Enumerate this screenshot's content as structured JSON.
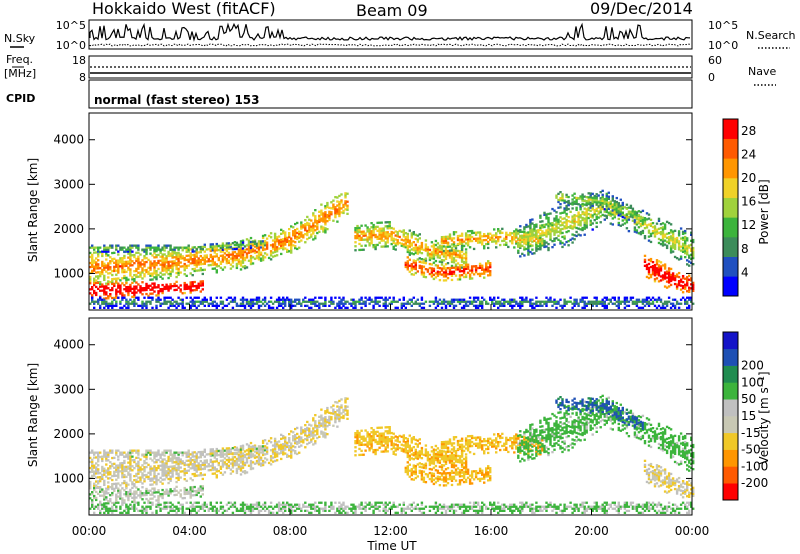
{
  "header": {
    "station": "Hokkaido West (fitACF)",
    "beam": "Beam 09",
    "date": "09/Dec/2014"
  },
  "summary": {
    "nsky_label": "N.Sky",
    "nsearch_label": "N.Search",
    "noise_ticks": [
      "10^5",
      "10^0"
    ],
    "freq_label_1": "Freq.",
    "freq_label_2": "[MHz]",
    "freq_ticks": [
      "18",
      "8"
    ],
    "nave_label": "Nave",
    "nave_ticks": [
      "60",
      "0"
    ],
    "cpid_label": "CPID",
    "cpid_text": "normal (fast stereo) 153"
  },
  "colors": {
    "power": [
      "#0000ff",
      "#2050c0",
      "#3c8c5a",
      "#3cb43c",
      "#a0d23c",
      "#f0d228",
      "#ff9600",
      "#ff5a00",
      "#ff0000"
    ],
    "velocity": [
      "#ff0000",
      "#ff5a00",
      "#ff9600",
      "#f0c828",
      "#c8c8b4",
      "#c0c0c0",
      "#3cb43c",
      "#208c50",
      "#1e50b4",
      "#1414c8"
    ]
  },
  "chart_data": [
    {
      "type": "heatmap",
      "name": "power",
      "xlabel": "",
      "ylabel": "Slant Range [km]",
      "x_ticks": [
        "00:00",
        "04:00",
        "08:00",
        "12:00",
        "16:00",
        "20:00",
        "00:00"
      ],
      "xlim_hours": [
        0,
        24
      ],
      "y_ticks": [
        1000,
        2000,
        3000,
        4000
      ],
      "ylim": [
        180,
        4600
      ],
      "colorbar_label": "Power [dB]",
      "colorbar_ticks": [
        4,
        8,
        12,
        16,
        20,
        24,
        28
      ],
      "colorbar_range": [
        0,
        30
      ]
    },
    {
      "type": "heatmap",
      "name": "velocity",
      "xlabel": "Time UT",
      "ylabel": "Slant Range [km]",
      "x_ticks": [
        "00:00",
        "04:00",
        "08:00",
        "12:00",
        "16:00",
        "20:00",
        "00:00"
      ],
      "xlim_hours": [
        0,
        24
      ],
      "y_ticks": [
        1000,
        2000,
        3000,
        4000
      ],
      "ylim": [
        180,
        4600
      ],
      "colorbar_label": "Velocity [m s⁻¹]",
      "colorbar_ticks": [
        "-200",
        "-100",
        "-50",
        "-15",
        "15",
        "50",
        "100",
        "200"
      ],
      "colorbar_range": [
        -250,
        250
      ]
    }
  ]
}
